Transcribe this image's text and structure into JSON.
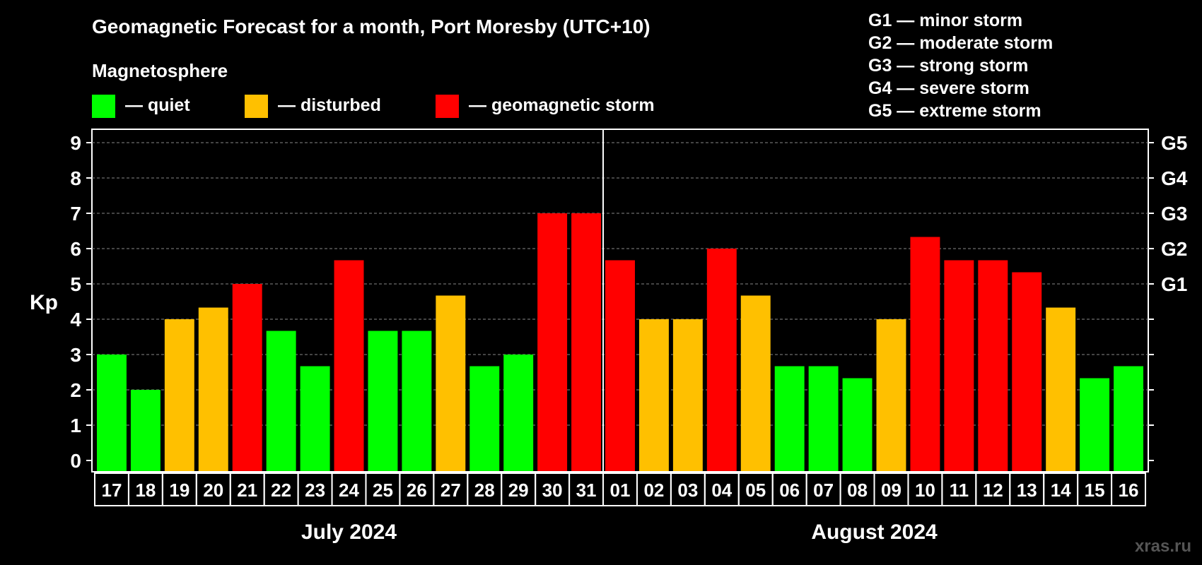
{
  "chart_data": {
    "type": "bar",
    "title": "Geomagnetic Forecast for a month, Port Moresby (UTC+10)",
    "legend": {
      "heading": "Magnetosphere",
      "items": [
        {
          "label": "— quiet",
          "color": "#00ff00"
        },
        {
          "label": "— disturbed",
          "color": "#ffc000"
        },
        {
          "label": "— geomagnetic storm",
          "color": "#ff0000"
        }
      ]
    },
    "storm_scale": [
      "G1 — minor storm",
      "G2 — moderate storm",
      "G3 — strong storm",
      "G4 — severe storm",
      "G5 — extreme storm"
    ],
    "ylabel": "Kp",
    "ylim": [
      0,
      9
    ],
    "yticks": [
      "0",
      "1",
      "2",
      "3",
      "4",
      "5",
      "6",
      "7",
      "8",
      "9"
    ],
    "right_axis_labels": [
      {
        "kp": 5,
        "label": "G1"
      },
      {
        "kp": 6,
        "label": "G2"
      },
      {
        "kp": 7,
        "label": "G3"
      },
      {
        "kp": 8,
        "label": "G4"
      },
      {
        "kp": 9,
        "label": "G5"
      }
    ],
    "categories": [
      "17",
      "18",
      "19",
      "20",
      "21",
      "22",
      "23",
      "24",
      "25",
      "26",
      "27",
      "28",
      "29",
      "30",
      "31",
      "01",
      "02",
      "03",
      "04",
      "05",
      "06",
      "07",
      "08",
      "09",
      "10",
      "11",
      "12",
      "13",
      "14",
      "15",
      "16"
    ],
    "values": [
      3,
      2,
      4,
      4.33,
      5,
      3.67,
      2.67,
      5.67,
      3.67,
      3.67,
      4.67,
      2.67,
      3,
      7,
      7,
      5.67,
      4,
      4,
      6,
      4.67,
      2.67,
      2.67,
      2.33,
      4,
      6.33,
      5.67,
      5.67,
      5.33,
      4.33,
      2.33,
      2.67
    ],
    "levels": [
      "quiet",
      "quiet",
      "disturbed",
      "disturbed",
      "storm",
      "quiet",
      "quiet",
      "storm",
      "quiet",
      "quiet",
      "disturbed",
      "quiet",
      "quiet",
      "storm",
      "storm",
      "storm",
      "disturbed",
      "disturbed",
      "storm",
      "disturbed",
      "quiet",
      "quiet",
      "quiet",
      "disturbed",
      "storm",
      "storm",
      "storm",
      "storm",
      "disturbed",
      "quiet",
      "quiet"
    ],
    "level_colors": {
      "quiet": "#00ff00",
      "disturbed": "#ffc000",
      "storm": "#ff0000"
    },
    "months": [
      {
        "label": "July 2024",
        "start": 0,
        "count": 15
      },
      {
        "label": "August 2024",
        "start": 15,
        "count": 16
      }
    ],
    "grid": true
  },
  "watermark": "xras.ru"
}
